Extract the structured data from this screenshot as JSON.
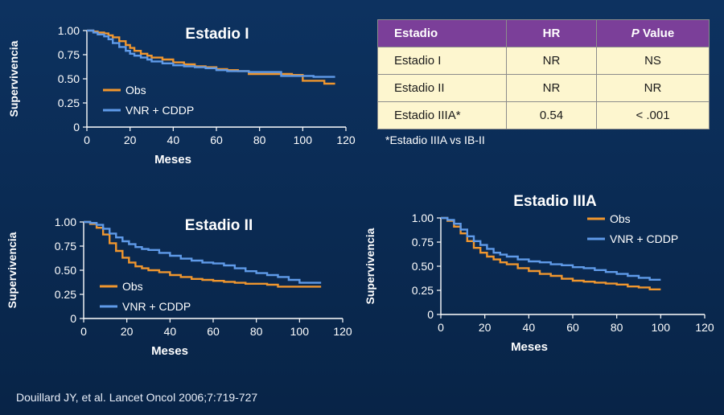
{
  "table": {
    "headers": [
      "Estadio",
      "HR",
      "P",
      "Value"
    ],
    "rows": [
      [
        "Estadio I",
        "NR",
        "NS"
      ],
      [
        "Estadio II",
        "NR",
        "NR"
      ],
      [
        "Estadio IIIA*",
        "0.54",
        "< .001"
      ]
    ],
    "note": "*Estadio IIIA vs IB-II"
  },
  "citation": "Douillard JY, et al. Lancet Oncol 2006;7:719-727",
  "chart_data": [
    {
      "type": "line",
      "title": "Estadio I",
      "xlabel": "Meses",
      "ylabel": "Supervivencia",
      "xlim": [
        0,
        120
      ],
      "ylim": [
        0,
        1
      ],
      "xticks": [
        0,
        20,
        40,
        60,
        80,
        100,
        120
      ],
      "yticks": [
        "0",
        "0.25",
        "0.50",
        "0.75",
        "1.00"
      ],
      "legend_position": "bottom-left",
      "series": [
        {
          "name": "Obs",
          "color": "#f0962e",
          "x": [
            0,
            3,
            5,
            8,
            10,
            12,
            15,
            18,
            20,
            22,
            25,
            28,
            30,
            35,
            40,
            45,
            50,
            55,
            60,
            65,
            70,
            75,
            80,
            85,
            90,
            95,
            100,
            105,
            110,
            115
          ],
          "y": [
            1.0,
            0.99,
            0.98,
            0.97,
            0.95,
            0.93,
            0.89,
            0.85,
            0.82,
            0.79,
            0.76,
            0.74,
            0.72,
            0.7,
            0.67,
            0.65,
            0.63,
            0.62,
            0.6,
            0.59,
            0.58,
            0.55,
            0.55,
            0.55,
            0.55,
            0.54,
            0.48,
            0.48,
            0.45,
            0.45
          ]
        },
        {
          "name": "VNR + CDDP",
          "color": "#5f9ae8",
          "x": [
            0,
            3,
            5,
            8,
            10,
            12,
            15,
            18,
            20,
            22,
            25,
            28,
            30,
            35,
            40,
            45,
            50,
            55,
            60,
            65,
            70,
            75,
            80,
            85,
            90,
            95,
            100,
            105,
            110,
            115
          ],
          "y": [
            1.0,
            0.98,
            0.96,
            0.94,
            0.91,
            0.87,
            0.83,
            0.79,
            0.76,
            0.74,
            0.72,
            0.7,
            0.68,
            0.66,
            0.64,
            0.63,
            0.62,
            0.61,
            0.59,
            0.58,
            0.58,
            0.57,
            0.57,
            0.57,
            0.53,
            0.53,
            0.53,
            0.52,
            0.52,
            0.52
          ]
        }
      ]
    },
    {
      "type": "line",
      "title": "Estadio II",
      "xlabel": "Meses",
      "ylabel": "Supervivencia",
      "xlim": [
        0,
        120
      ],
      "ylim": [
        0,
        1
      ],
      "xticks": [
        0,
        20,
        40,
        60,
        80,
        100,
        120
      ],
      "yticks": [
        "0",
        "0.25",
        "0.50",
        "0.75",
        "1.00"
      ],
      "legend_position": "bottom-left",
      "series": [
        {
          "name": "Obs",
          "color": "#f0962e",
          "x": [
            0,
            3,
            6,
            9,
            12,
            15,
            18,
            21,
            24,
            27,
            30,
            35,
            40,
            45,
            50,
            55,
            60,
            65,
            70,
            75,
            80,
            85,
            90,
            95,
            100,
            105,
            110
          ],
          "y": [
            1.0,
            0.98,
            0.94,
            0.87,
            0.78,
            0.7,
            0.63,
            0.58,
            0.54,
            0.52,
            0.5,
            0.48,
            0.45,
            0.43,
            0.41,
            0.4,
            0.39,
            0.38,
            0.37,
            0.36,
            0.36,
            0.35,
            0.33,
            0.33,
            0.33,
            0.33,
            0.33
          ]
        },
        {
          "name": "VNR + CDDP",
          "color": "#5f9ae8",
          "x": [
            0,
            3,
            6,
            9,
            12,
            15,
            18,
            21,
            24,
            27,
            30,
            35,
            40,
            45,
            50,
            55,
            60,
            65,
            70,
            75,
            80,
            85,
            90,
            95,
            100,
            105,
            110
          ],
          "y": [
            1.0,
            0.99,
            0.97,
            0.93,
            0.88,
            0.84,
            0.8,
            0.77,
            0.74,
            0.72,
            0.71,
            0.68,
            0.65,
            0.62,
            0.6,
            0.58,
            0.57,
            0.55,
            0.52,
            0.49,
            0.47,
            0.45,
            0.43,
            0.4,
            0.37,
            0.37,
            0.37
          ]
        }
      ]
    },
    {
      "type": "line",
      "title": "Estadio IIIA",
      "xlabel": "Meses",
      "ylabel": "Supervivencia",
      "xlim": [
        0,
        120
      ],
      "ylim": [
        0,
        1
      ],
      "xticks": [
        0,
        20,
        40,
        60,
        80,
        100,
        120
      ],
      "yticks": [
        "0",
        "0.25",
        "0.50",
        "0.75",
        "1.00"
      ],
      "legend_position": "top-right",
      "series": [
        {
          "name": "Obs",
          "color": "#f0962e",
          "x": [
            0,
            3,
            6,
            9,
            12,
            15,
            18,
            21,
            24,
            27,
            30,
            35,
            40,
            45,
            50,
            55,
            60,
            65,
            70,
            75,
            80,
            85,
            90,
            95,
            100
          ],
          "y": [
            1.0,
            0.97,
            0.91,
            0.84,
            0.76,
            0.69,
            0.64,
            0.6,
            0.57,
            0.54,
            0.52,
            0.48,
            0.45,
            0.42,
            0.4,
            0.37,
            0.35,
            0.34,
            0.33,
            0.32,
            0.31,
            0.29,
            0.28,
            0.26,
            0.26
          ]
        },
        {
          "name": "VNR + CDDP",
          "color": "#5f9ae8",
          "x": [
            0,
            3,
            6,
            9,
            12,
            15,
            18,
            21,
            24,
            27,
            30,
            35,
            40,
            45,
            50,
            55,
            60,
            65,
            70,
            75,
            80,
            85,
            90,
            95,
            100
          ],
          "y": [
            1.0,
            0.98,
            0.94,
            0.88,
            0.81,
            0.76,
            0.72,
            0.68,
            0.64,
            0.62,
            0.6,
            0.57,
            0.55,
            0.54,
            0.52,
            0.51,
            0.49,
            0.48,
            0.46,
            0.44,
            0.42,
            0.4,
            0.38,
            0.36,
            0.36
          ]
        }
      ]
    }
  ]
}
